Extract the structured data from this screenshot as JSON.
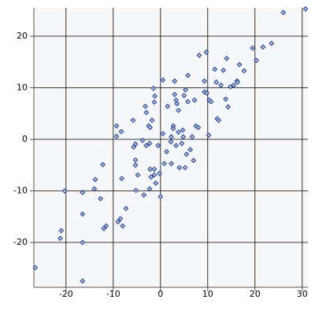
{
  "chart_data": {
    "type": "scatter",
    "x": [
      -26.5,
      -16.5,
      -16.5,
      -16.5,
      -16.5,
      -20.3,
      -21,
      -21.2,
      -14,
      -13.8,
      -12.7,
      -12.2,
      -12,
      -11.5,
      -9.3,
      -8.3,
      -9.3,
      -8.2,
      -9,
      -8.5,
      -8,
      -7.3,
      -5.8,
      -5.3,
      -5.7,
      -5.3,
      -5.3,
      -4.8,
      -5.2,
      -3.2,
      -3,
      -2.5,
      -2.2,
      -3.8,
      -3,
      -2.3,
      -2.2,
      -1.3,
      -1.3,
      -2,
      -1,
      -2.3,
      -3.5,
      -1.5,
      -1.2,
      -1.3,
      -1.8,
      -0.5,
      0.5,
      0.5,
      0,
      -0.2,
      0.8,
      1.3,
      2.2,
      2.3,
      2.7,
      1.5,
      3,
      3,
      3.3,
      3.5,
      3.8,
      2.7,
      3.3,
      3.8,
      4,
      2.3,
      4.8,
      4.5,
      4.7,
      5,
      5.3,
      5.2,
      5.5,
      5.8,
      5.8,
      6.3,
      7,
      6.7,
      7.2,
      7.5,
      8.2,
      8,
      9.3,
      9.7,
      9.3,
      9.8,
      10.3,
      10.7,
      10.2,
      11.5,
      11.8,
      12,
      12.3,
      12.8,
      13.3,
      13.8,
      14,
      14.3,
      14.8,
      15.5,
      16.2,
      16.7,
      16.3,
      17.7,
      19.5,
      20.3,
      21.7,
      23.5,
      26,
      30.7
    ],
    "values": [
      -24.9,
      -27.5,
      -20,
      -14.5,
      -10.3,
      -10,
      -17.7,
      -19.2,
      -9.6,
      -7.8,
      -11.5,
      -4.9,
      -17.3,
      -16.8,
      2.6,
      1.5,
      0.6,
      -7.6,
      -16,
      -15.4,
      -16.8,
      -13.4,
      3.7,
      -0.9,
      -1.5,
      -4,
      -5,
      -6.9,
      -9.9,
      6.4,
      5.2,
      2.6,
      2.3,
      -0.2,
      -1.2,
      -0.8,
      -5.8,
      -5.8,
      -6.9,
      -7.3,
      -8.5,
      -9.6,
      -10.8,
      9.9,
      8.4,
      7.2,
      3.7,
      -1.2,
      1.1,
      11.5,
      -11.1,
      -6.6,
      -4.7,
      -2.4,
      -0.5,
      0.5,
      2.6,
      6.4,
      11.3,
      8.7,
      7.6,
      6.9,
      5.6,
      2.1,
      -1.2,
      1.4,
      -5.5,
      -4.7,
      0.5,
      -0.8,
      1.8,
      8.5,
      9.6,
      -5.5,
      -2.9,
      12.4,
      7.3,
      -2,
      -4.1,
      0.5,
      7.6,
      2.6,
      16.3,
      2.3,
      11.3,
      16.9,
      9.2,
      9,
      7.6,
      7.3,
      0.8,
      13.6,
      11.1,
      4,
      3.7,
      10.5,
      13.4,
      7.8,
      15.7,
      6.3,
      10.2,
      10.5,
      11.3,
      14.5,
      11.1,
      13.3,
      17.7,
      15.3,
      17.9,
      18.6,
      24.6,
      25.3
    ],
    "color": "#2b4a9e",
    "xlim": [
      -26.8,
      31.2
    ],
    "ylim": [
      -28.7,
      25.5
    ],
    "xticks": [
      -20,
      -10,
      0,
      10,
      20,
      30
    ],
    "yticks": [
      -20,
      -10,
      0,
      10,
      20
    ],
    "grid": true
  }
}
